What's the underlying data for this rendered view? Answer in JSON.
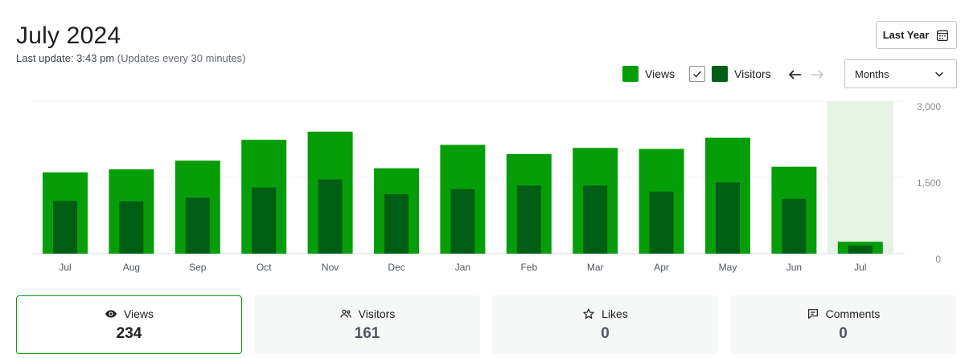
{
  "header": {
    "title": "July 2024",
    "last_update": "Last update: 3:43 pm",
    "update_note": "(Updates every 30 minutes)",
    "range_button": "Last Year",
    "range_icon": "calendar-icon"
  },
  "legend": {
    "views_label": "Views",
    "visitors_label": "Visitors",
    "visitors_checked": true
  },
  "period_select": {
    "value": "Months"
  },
  "colors": {
    "views": "#069e08",
    "visitors": "#005e14",
    "highlight": "#e4f3e4",
    "active_border": "#069e08"
  },
  "chart_data": {
    "type": "bar",
    "categories": [
      "Jul",
      "Aug",
      "Sep",
      "Oct",
      "Nov",
      "Dec",
      "Jan",
      "Feb",
      "Mar",
      "Apr",
      "May",
      "Jun",
      "Jul"
    ],
    "series": [
      {
        "name": "Views",
        "values": [
          1600,
          1660,
          1830,
          2240,
          2400,
          1680,
          2140,
          1960,
          2080,
          2060,
          2280,
          1710,
          234
        ]
      },
      {
        "name": "Visitors",
        "values": [
          1040,
          1030,
          1100,
          1300,
          1460,
          1170,
          1270,
          1340,
          1340,
          1220,
          1400,
          1080,
          161
        ]
      }
    ],
    "y_ticks": [
      "3,000",
      "1,500",
      "0"
    ],
    "ylim": [
      0,
      3000
    ],
    "highlighted_index": 12,
    "grid": true
  },
  "stats": [
    {
      "label": "Views",
      "value": "234",
      "icon": "eye-icon",
      "active": true
    },
    {
      "label": "Visitors",
      "value": "161",
      "icon": "people-icon",
      "active": false
    },
    {
      "label": "Likes",
      "value": "0",
      "icon": "star-icon",
      "active": false
    },
    {
      "label": "Comments",
      "value": "0",
      "icon": "comment-icon",
      "active": false
    }
  ]
}
